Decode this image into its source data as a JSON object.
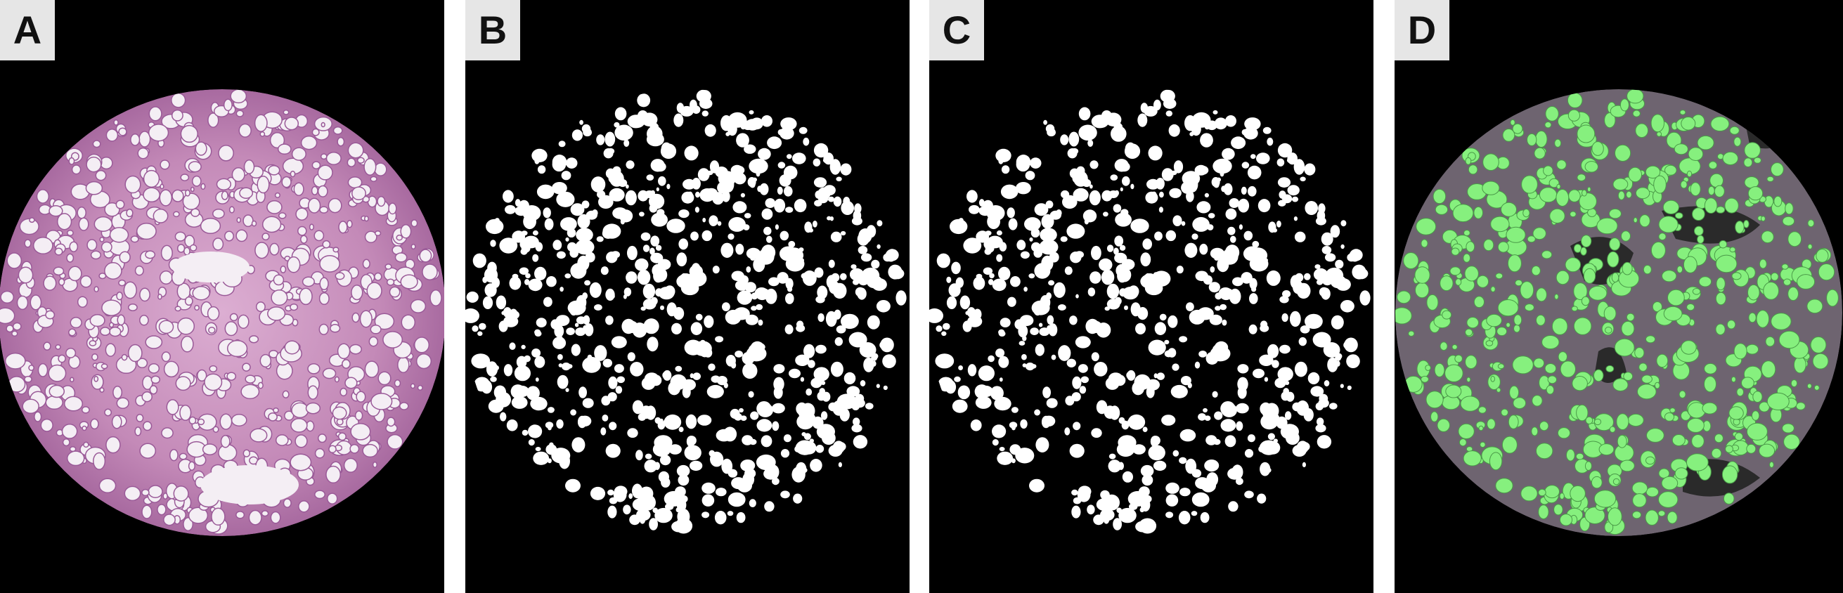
{
  "panels": [
    {
      "label": "A",
      "kind": "stained-tissue-micrograph"
    },
    {
      "label": "B",
      "kind": "binary-mask"
    },
    {
      "label": "C",
      "kind": "binary-mask-filtered"
    },
    {
      "label": "D",
      "kind": "overlay"
    }
  ],
  "colors": {
    "background_dark": "#000000",
    "tissue_pink": "#c48ab8",
    "tissue_purple": "#9a5a98",
    "vacuole_white": "#f4eef4",
    "mask_white": "#ffffff",
    "overlay_green": "#86f07e",
    "overlay_tissue": "#6e6470",
    "overlay_dark": "#2a2a2a"
  }
}
